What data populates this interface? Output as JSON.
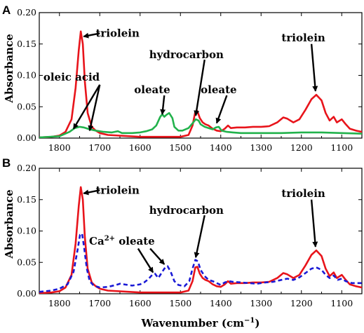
{
  "chart_data": [
    {
      "panel": "A",
      "type": "line",
      "xlabel": "",
      "ylabel": "Absorbance",
      "xlim": [
        1850,
        1050
      ],
      "ylim": [
        0,
        0.2
      ],
      "x_ticks": [
        1800,
        1700,
        1600,
        1500,
        1400,
        1300,
        1200,
        1100
      ],
      "y_ticks": [
        "0.00",
        "0.05",
        "0.10",
        "0.15",
        "0.20"
      ],
      "grid": false,
      "series": [
        {
          "color": "#e8141b",
          "dash": "solid",
          "points": [
            [
              1850,
              0.001
            ],
            [
              1820,
              0.002
            ],
            [
              1800,
              0.004
            ],
            [
              1785,
              0.01
            ],
            [
              1770,
              0.03
            ],
            [
              1760,
              0.08
            ],
            [
              1752,
              0.14
            ],
            [
              1747,
              0.17
            ],
            [
              1742,
              0.15
            ],
            [
              1737,
              0.09
            ],
            [
              1730,
              0.04
            ],
            [
              1720,
              0.018
            ],
            [
              1710,
              0.012
            ],
            [
              1700,
              0.008
            ],
            [
              1680,
              0.005
            ],
            [
              1600,
              0.002
            ],
            [
              1500,
              0.002
            ],
            [
              1480,
              0.005
            ],
            [
              1470,
              0.02
            ],
            [
              1463,
              0.042
            ],
            [
              1458,
              0.043
            ],
            [
              1452,
              0.032
            ],
            [
              1445,
              0.025
            ],
            [
              1438,
              0.022
            ],
            [
              1430,
              0.02
            ],
            [
              1420,
              0.015
            ],
            [
              1410,
              0.012
            ],
            [
              1400,
              0.011
            ],
            [
              1390,
              0.015
            ],
            [
              1382,
              0.02
            ],
            [
              1375,
              0.016
            ],
            [
              1360,
              0.017
            ],
            [
              1340,
              0.017
            ],
            [
              1320,
              0.018
            ],
            [
              1300,
              0.018
            ],
            [
              1280,
              0.019
            ],
            [
              1260,
              0.025
            ],
            [
              1245,
              0.033
            ],
            [
              1235,
              0.031
            ],
            [
              1220,
              0.025
            ],
            [
              1205,
              0.03
            ],
            [
              1190,
              0.045
            ],
            [
              1175,
              0.062
            ],
            [
              1163,
              0.069
            ],
            [
              1150,
              0.06
            ],
            [
              1140,
              0.04
            ],
            [
              1130,
              0.028
            ],
            [
              1120,
              0.034
            ],
            [
              1112,
              0.025
            ],
            [
              1100,
              0.03
            ],
            [
              1090,
              0.022
            ],
            [
              1080,
              0.015
            ],
            [
              1065,
              0.012
            ],
            [
              1050,
              0.01
            ]
          ]
        },
        {
          "color": "#22b24c",
          "dash": "solid",
          "points": [
            [
              1850,
              0.001
            ],
            [
              1800,
              0.003
            ],
            [
              1775,
              0.01
            ],
            [
              1762,
              0.016
            ],
            [
              1750,
              0.018
            ],
            [
              1740,
              0.017
            ],
            [
              1725,
              0.014
            ],
            [
              1710,
              0.012
            ],
            [
              1690,
              0.01
            ],
            [
              1670,
              0.009
            ],
            [
              1655,
              0.011
            ],
            [
              1645,
              0.008
            ],
            [
              1620,
              0.008
            ],
            [
              1600,
              0.009
            ],
            [
              1585,
              0.011
            ],
            [
              1570,
              0.014
            ],
            [
              1560,
              0.02
            ],
            [
              1550,
              0.034
            ],
            [
              1545,
              0.038
            ],
            [
              1540,
              0.034
            ],
            [
              1535,
              0.037
            ],
            [
              1528,
              0.04
            ],
            [
              1520,
              0.032
            ],
            [
              1515,
              0.018
            ],
            [
              1505,
              0.012
            ],
            [
              1495,
              0.012
            ],
            [
              1480,
              0.016
            ],
            [
              1468,
              0.025
            ],
            [
              1462,
              0.03
            ],
            [
              1455,
              0.028
            ],
            [
              1450,
              0.022
            ],
            [
              1440,
              0.018
            ],
            [
              1430,
              0.016
            ],
            [
              1420,
              0.014
            ],
            [
              1412,
              0.017
            ],
            [
              1405,
              0.018
            ],
            [
              1398,
              0.012
            ],
            [
              1385,
              0.01
            ],
            [
              1370,
              0.009
            ],
            [
              1350,
              0.008
            ],
            [
              1300,
              0.008
            ],
            [
              1250,
              0.008
            ],
            [
              1200,
              0.009
            ],
            [
              1150,
              0.009
            ],
            [
              1100,
              0.008
            ],
            [
              1050,
              0.007
            ]
          ]
        }
      ],
      "annotations": [
        {
          "text": "triolein",
          "x": 1710,
          "y": 0.167
        },
        {
          "text": "oleic acid",
          "x": 1720,
          "y": 0.097
        },
        {
          "text": "oleate",
          "x": 1570,
          "y": 0.077
        },
        {
          "text": "hydrocarbon",
          "x": 1485,
          "y": 0.133
        },
        {
          "text": "oleate",
          "x": 1405,
          "y": 0.077
        },
        {
          "text": "triolein",
          "x": 1195,
          "y": 0.16
        }
      ]
    },
    {
      "panel": "B",
      "type": "line",
      "xlabel": "Wavenumber",
      "xlabel_unit": "cm",
      "xlabel_unit_sup": "−1",
      "ylabel": "Absorbance",
      "xlim": [
        1850,
        1050
      ],
      "ylim": [
        0,
        0.2
      ],
      "x_ticks": [
        1800,
        1700,
        1600,
        1500,
        1400,
        1300,
        1200,
        1100
      ],
      "y_ticks": [
        "0.00",
        "0.05",
        "0.10",
        "0.15",
        "0.20"
      ],
      "grid": false,
      "series": [
        {
          "color": "#e8141b",
          "dash": "solid",
          "points": [
            [
              1850,
              0.001
            ],
            [
              1820,
              0.002
            ],
            [
              1800,
              0.004
            ],
            [
              1785,
              0.01
            ],
            [
              1770,
              0.03
            ],
            [
              1760,
              0.08
            ],
            [
              1752,
              0.14
            ],
            [
              1747,
              0.17
            ],
            [
              1742,
              0.15
            ],
            [
              1737,
              0.09
            ],
            [
              1730,
              0.04
            ],
            [
              1720,
              0.018
            ],
            [
              1710,
              0.012
            ],
            [
              1700,
              0.008
            ],
            [
              1680,
              0.005
            ],
            [
              1600,
              0.002
            ],
            [
              1500,
              0.002
            ],
            [
              1480,
              0.005
            ],
            [
              1470,
              0.02
            ],
            [
              1463,
              0.042
            ],
            [
              1458,
              0.043
            ],
            [
              1452,
              0.032
            ],
            [
              1445,
              0.025
            ],
            [
              1438,
              0.022
            ],
            [
              1430,
              0.02
            ],
            [
              1420,
              0.015
            ],
            [
              1410,
              0.012
            ],
            [
              1400,
              0.011
            ],
            [
              1390,
              0.015
            ],
            [
              1382,
              0.02
            ],
            [
              1375,
              0.016
            ],
            [
              1360,
              0.017
            ],
            [
              1340,
              0.017
            ],
            [
              1320,
              0.018
            ],
            [
              1300,
              0.018
            ],
            [
              1280,
              0.019
            ],
            [
              1260,
              0.025
            ],
            [
              1245,
              0.033
            ],
            [
              1235,
              0.031
            ],
            [
              1220,
              0.025
            ],
            [
              1205,
              0.03
            ],
            [
              1190,
              0.045
            ],
            [
              1175,
              0.062
            ],
            [
              1163,
              0.069
            ],
            [
              1150,
              0.06
            ],
            [
              1140,
              0.04
            ],
            [
              1130,
              0.028
            ],
            [
              1120,
              0.034
            ],
            [
              1112,
              0.025
            ],
            [
              1100,
              0.03
            ],
            [
              1090,
              0.022
            ],
            [
              1080,
              0.015
            ],
            [
              1065,
              0.012
            ],
            [
              1050,
              0.01
            ]
          ]
        },
        {
          "color": "#1a1ad6",
          "dash": "dashed",
          "points": [
            [
              1850,
              0.003
            ],
            [
              1820,
              0.005
            ],
            [
              1800,
              0.008
            ],
            [
              1780,
              0.015
            ],
            [
              1765,
              0.035
            ],
            [
              1755,
              0.07
            ],
            [
              1749,
              0.094
            ],
            [
              1744,
              0.096
            ],
            [
              1739,
              0.075
            ],
            [
              1732,
              0.04
            ],
            [
              1725,
              0.02
            ],
            [
              1715,
              0.013
            ],
            [
              1700,
              0.01
            ],
            [
              1680,
              0.011
            ],
            [
              1660,
              0.014
            ],
            [
              1650,
              0.016
            ],
            [
              1640,
              0.015
            ],
            [
              1620,
              0.013
            ],
            [
              1600,
              0.015
            ],
            [
              1590,
              0.018
            ],
            [
              1580,
              0.023
            ],
            [
              1570,
              0.03
            ],
            [
              1563,
              0.032
            ],
            [
              1555,
              0.025
            ],
            [
              1548,
              0.032
            ],
            [
              1540,
              0.04
            ],
            [
              1532,
              0.044
            ],
            [
              1524,
              0.035
            ],
            [
              1515,
              0.02
            ],
            [
              1505,
              0.014
            ],
            [
              1490,
              0.012
            ],
            [
              1478,
              0.02
            ],
            [
              1470,
              0.04
            ],
            [
              1463,
              0.054
            ],
            [
              1457,
              0.052
            ],
            [
              1450,
              0.038
            ],
            [
              1440,
              0.028
            ],
            [
              1430,
              0.022
            ],
            [
              1420,
              0.02
            ],
            [
              1410,
              0.017
            ],
            [
              1400,
              0.014
            ],
            [
              1390,
              0.018
            ],
            [
              1380,
              0.02
            ],
            [
              1370,
              0.019
            ],
            [
              1350,
              0.018
            ],
            [
              1330,
              0.017
            ],
            [
              1310,
              0.016
            ],
            [
              1290,
              0.018
            ],
            [
              1270,
              0.019
            ],
            [
              1250,
              0.022
            ],
            [
              1235,
              0.024
            ],
            [
              1220,
              0.022
            ],
            [
              1205,
              0.026
            ],
            [
              1190,
              0.033
            ],
            [
              1175,
              0.04
            ],
            [
              1163,
              0.042
            ],
            [
              1150,
              0.038
            ],
            [
              1140,
              0.03
            ],
            [
              1130,
              0.025
            ],
            [
              1120,
              0.029
            ],
            [
              1110,
              0.022
            ],
            [
              1100,
              0.024
            ],
            [
              1090,
              0.02
            ],
            [
              1075,
              0.017
            ],
            [
              1050,
              0.017
            ]
          ]
        }
      ],
      "annotations": [
        {
          "text": "triolein",
          "x": 1710,
          "y": 0.165
        },
        {
          "text": "Ca",
          "sup": "2+",
          "suffix": " oleate",
          "x": 1650,
          "y": 0.096
        },
        {
          "text": "hydrocarbon",
          "x": 1485,
          "y": 0.133
        },
        {
          "text": "triolein",
          "x": 1195,
          "y": 0.16
        }
      ]
    }
  ]
}
